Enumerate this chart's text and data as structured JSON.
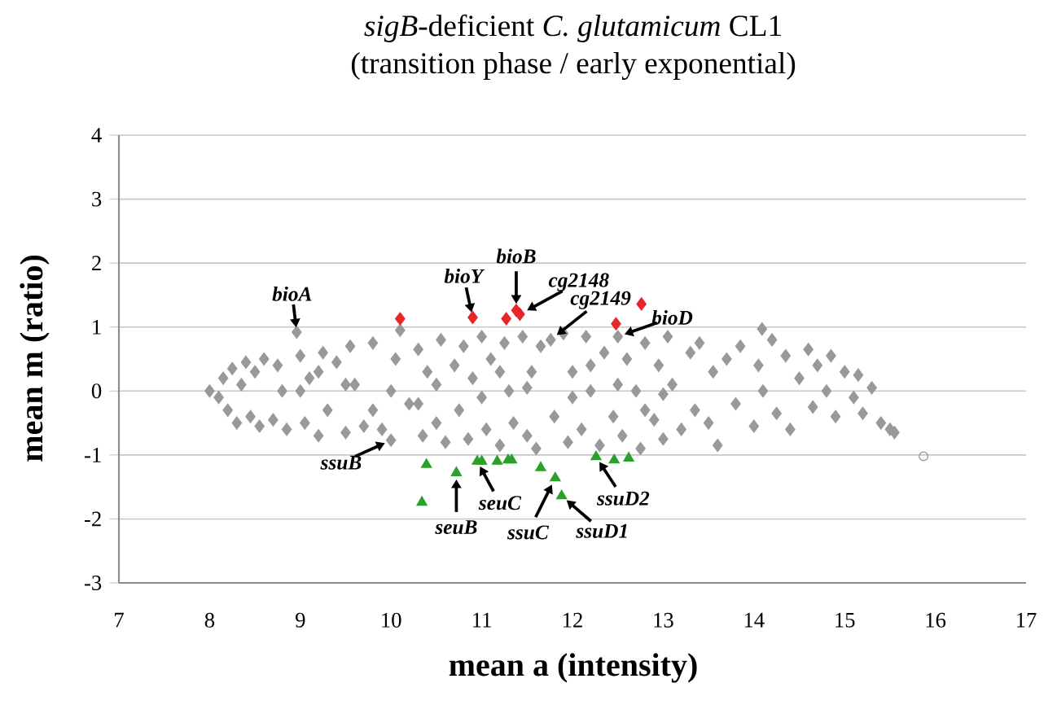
{
  "chart_data": {
    "type": "scatter",
    "title": "*sigB*-deficient *C. glutamicum* CL1",
    "subtitle": "(transition phase / early exponential)",
    "xlabel": "mean a (intensity)",
    "ylabel": "mean m (ratio)",
    "xlim": [
      7,
      17
    ],
    "xticks": [
      7,
      8,
      9,
      10,
      11,
      12,
      13,
      14,
      15,
      16,
      17
    ],
    "ylim": [
      -3,
      4
    ],
    "yticks": [
      -3,
      -2,
      -1,
      0,
      1,
      2,
      3,
      4
    ],
    "grid": "y",
    "series": [
      {
        "color": "#999999",
        "marker": "diamond",
        "x": [
          8.0,
          8.1,
          8.15,
          8.2,
          8.25,
          8.3,
          8.35,
          8.4,
          8.45,
          8.5,
          8.55,
          8.6,
          8.7,
          8.75,
          8.8,
          8.85,
          8.96,
          9.0,
          9.05,
          9.1,
          9.2,
          9.25,
          9.3,
          9.4,
          9.5,
          9.55,
          9.6,
          9.7,
          9.8,
          9.9,
          10.0,
          10.05,
          10.1,
          10.2,
          10.3,
          10.35,
          10.4,
          10.5,
          10.55,
          10.6,
          10.7,
          10.75,
          10.8,
          10.85,
          10.9,
          11.0,
          11.05,
          11.1,
          11.2,
          11.25,
          11.3,
          11.35,
          11.45,
          11.5,
          11.55,
          11.6,
          11.65,
          11.76,
          11.8,
          11.9,
          11.95,
          12.0,
          12.1,
          12.15,
          12.2,
          12.3,
          12.35,
          12.45,
          12.5,
          12.55,
          12.6,
          12.7,
          12.75,
          12.8,
          12.9,
          12.95,
          13.0,
          13.05,
          13.1,
          13.2,
          13.3,
          13.35,
          13.4,
          13.5,
          13.55,
          13.6,
          13.7,
          13.8,
          13.85,
          14.09,
          14.0,
          14.05,
          14.1,
          14.2,
          14.25,
          14.35,
          14.4,
          14.5,
          14.6,
          14.65,
          14.7,
          14.8,
          14.85,
          14.9,
          15.0,
          15.1,
          15.15,
          15.2,
          15.3,
          15.4,
          15.5,
          15.55,
          9.0,
          9.5,
          10.0,
          10.5,
          11.0,
          11.5,
          12.0,
          12.5,
          13.0,
          9.2,
          9.8,
          10.3,
          11.2,
          12.2,
          12.8
        ],
        "values": [
          0.0,
          -0.1,
          0.2,
          -0.3,
          0.35,
          -0.5,
          0.1,
          0.45,
          -0.4,
          0.3,
          -0.55,
          0.5,
          -0.45,
          0.4,
          0.0,
          -0.6,
          0.92,
          0.55,
          -0.5,
          0.2,
          -0.7,
          0.6,
          -0.3,
          0.45,
          -0.65,
          0.7,
          0.1,
          -0.55,
          0.75,
          -0.6,
          -0.77,
          0.5,
          0.95,
          -0.2,
          0.65,
          -0.7,
          0.3,
          -0.5,
          0.8,
          -0.8,
          0.4,
          -0.3,
          0.7,
          -0.75,
          0.2,
          0.85,
          -0.6,
          0.5,
          -0.85,
          0.75,
          0.0,
          -0.5,
          0.85,
          -0.7,
          0.3,
          -0.9,
          0.7,
          0.8,
          -0.4,
          0.9,
          -0.8,
          0.3,
          -0.6,
          0.85,
          0.0,
          -0.85,
          0.6,
          -0.4,
          0.85,
          -0.7,
          0.5,
          0.0,
          -0.9,
          0.75,
          -0.45,
          0.4,
          -0.75,
          0.85,
          0.1,
          -0.6,
          0.6,
          -0.3,
          0.75,
          -0.5,
          0.3,
          -0.85,
          0.5,
          -0.2,
          0.7,
          0.97,
          -0.55,
          0.4,
          0.0,
          0.8,
          -0.35,
          0.55,
          -0.6,
          0.2,
          0.65,
          -0.25,
          0.4,
          0.0,
          0.55,
          -0.4,
          0.3,
          -0.1,
          0.25,
          -0.35,
          0.05,
          -0.5,
          -0.6,
          -0.65,
          0.0,
          0.1,
          0.0,
          0.1,
          -0.1,
          0.05,
          -0.1,
          0.1,
          -0.05,
          0.3,
          -0.3,
          -0.2,
          0.3,
          0.4,
          -0.3
        ]
      },
      {
        "color": "#e8262a",
        "marker": "diamond",
        "x": [
          10.1,
          10.9,
          11.27,
          11.38,
          11.42,
          12.76,
          12.48
        ],
        "values": [
          1.13,
          1.15,
          1.13,
          1.26,
          1.2,
          1.36,
          1.05
        ]
      },
      {
        "color": "#2ca02c",
        "marker": "triangle",
        "x": [
          10.39,
          10.72,
          10.95,
          11.0,
          11.17,
          11.29,
          11.33,
          11.65,
          11.81,
          11.88,
          10.34,
          12.26,
          12.46,
          12.62
        ],
        "values": [
          -1.15,
          -1.28,
          -1.1,
          -1.1,
          -1.1,
          -1.08,
          -1.08,
          -1.2,
          -1.36,
          -1.64,
          -1.74,
          -1.03,
          -1.08,
          -1.05
        ]
      },
      {
        "color": "#999999",
        "marker": "circle",
        "x": [
          15.87
        ],
        "values": [
          -1.02
        ]
      }
    ],
    "annotations": [
      {
        "text": "bioA",
        "x": 8.96,
        "y": 0.92
      },
      {
        "text": "bioY",
        "x": 10.9,
        "y": 1.15
      },
      {
        "text": "bioB",
        "x": 11.38,
        "y": 1.26
      },
      {
        "text": "cg2148",
        "x": 11.42,
        "y": 1.2
      },
      {
        "text": "cg2149",
        "x": 11.76,
        "y": 0.8
      },
      {
        "text": "bioD",
        "x": 12.5,
        "y": 0.85
      },
      {
        "text": "ssuB",
        "x": 10.0,
        "y": -0.77
      },
      {
        "text": "seuB",
        "x": 10.72,
        "y": -1.28
      },
      {
        "text": "seuC",
        "x": 10.95,
        "y": -1.1
      },
      {
        "text": "ssuC",
        "x": 11.81,
        "y": -1.36
      },
      {
        "text": "ssuD1",
        "x": 11.88,
        "y": -1.64
      },
      {
        "text": "ssuD2",
        "x": 12.26,
        "y": -1.03
      }
    ]
  }
}
